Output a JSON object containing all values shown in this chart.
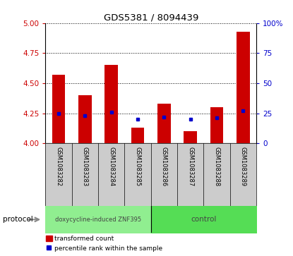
{
  "title": "GDS5381 / 8094439",
  "samples": [
    "GSM1083282",
    "GSM1083283",
    "GSM1083284",
    "GSM1083285",
    "GSM1083286",
    "GSM1083287",
    "GSM1083288",
    "GSM1083289"
  ],
  "transformed_count": [
    4.57,
    4.4,
    4.65,
    4.13,
    4.33,
    4.1,
    4.3,
    4.93
  ],
  "percentile_rank": [
    25,
    23,
    26,
    20,
    22,
    20,
    21,
    27
  ],
  "ylim_left": [
    4.0,
    5.0
  ],
  "ylim_right": [
    0,
    100
  ],
  "yticks_left": [
    4.0,
    4.25,
    4.5,
    4.75,
    5.0
  ],
  "yticks_right": [
    0,
    25,
    50,
    75,
    100
  ],
  "bar_color": "#cc0000",
  "dot_color": "#0000cc",
  "bar_width": 0.5,
  "groups": [
    {
      "label": "doxycycline-induced ZNF395",
      "n": 4,
      "color": "#90ee90"
    },
    {
      "label": "control",
      "n": 4,
      "color": "#66dd66"
    }
  ],
  "protocol_label": "protocol",
  "legend_bar_label": "transformed count",
  "legend_dot_label": "percentile rank within the sample",
  "background_color": "#ffffff",
  "tick_color_left": "#cc0000",
  "tick_color_right": "#0000cc",
  "x_label_area_color": "#cccccc",
  "protocol_area_color": "#90ee90",
  "protocol_area_color2": "#55dd55"
}
